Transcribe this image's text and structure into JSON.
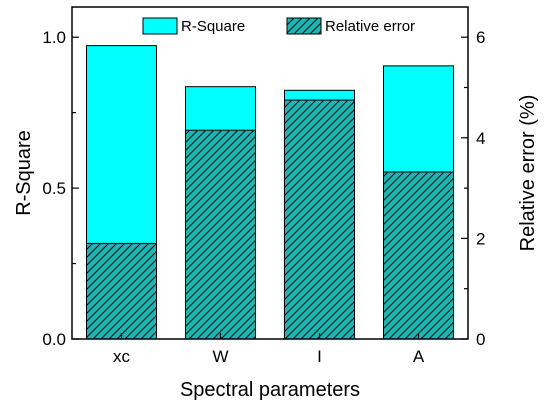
{
  "chart_data": {
    "type": "bar",
    "categories": [
      "xc",
      "W",
      "I",
      "A"
    ],
    "xlabel": "Spectral parameters",
    "ylabel": "R-Square",
    "y2label": "Relative error (%)",
    "ylim": [
      0,
      1.1
    ],
    "y2lim": [
      0,
      6.6
    ],
    "yticks": [
      "0.0",
      "0.5",
      "1.0"
    ],
    "y2ticks": [
      "0",
      "2",
      "4",
      "6"
    ],
    "legend_position": "top",
    "series": [
      {
        "name": "R-Square",
        "axis": "left",
        "color": "#00ffff",
        "pattern": "solid",
        "values": [
          0.972,
          0.836,
          0.824,
          0.905
        ]
      },
      {
        "name": "Relative error",
        "axis": "right",
        "color": "#1fb5b5",
        "pattern": "hatched",
        "values": [
          1.9,
          4.15,
          4.75,
          3.32
        ]
      }
    ]
  }
}
